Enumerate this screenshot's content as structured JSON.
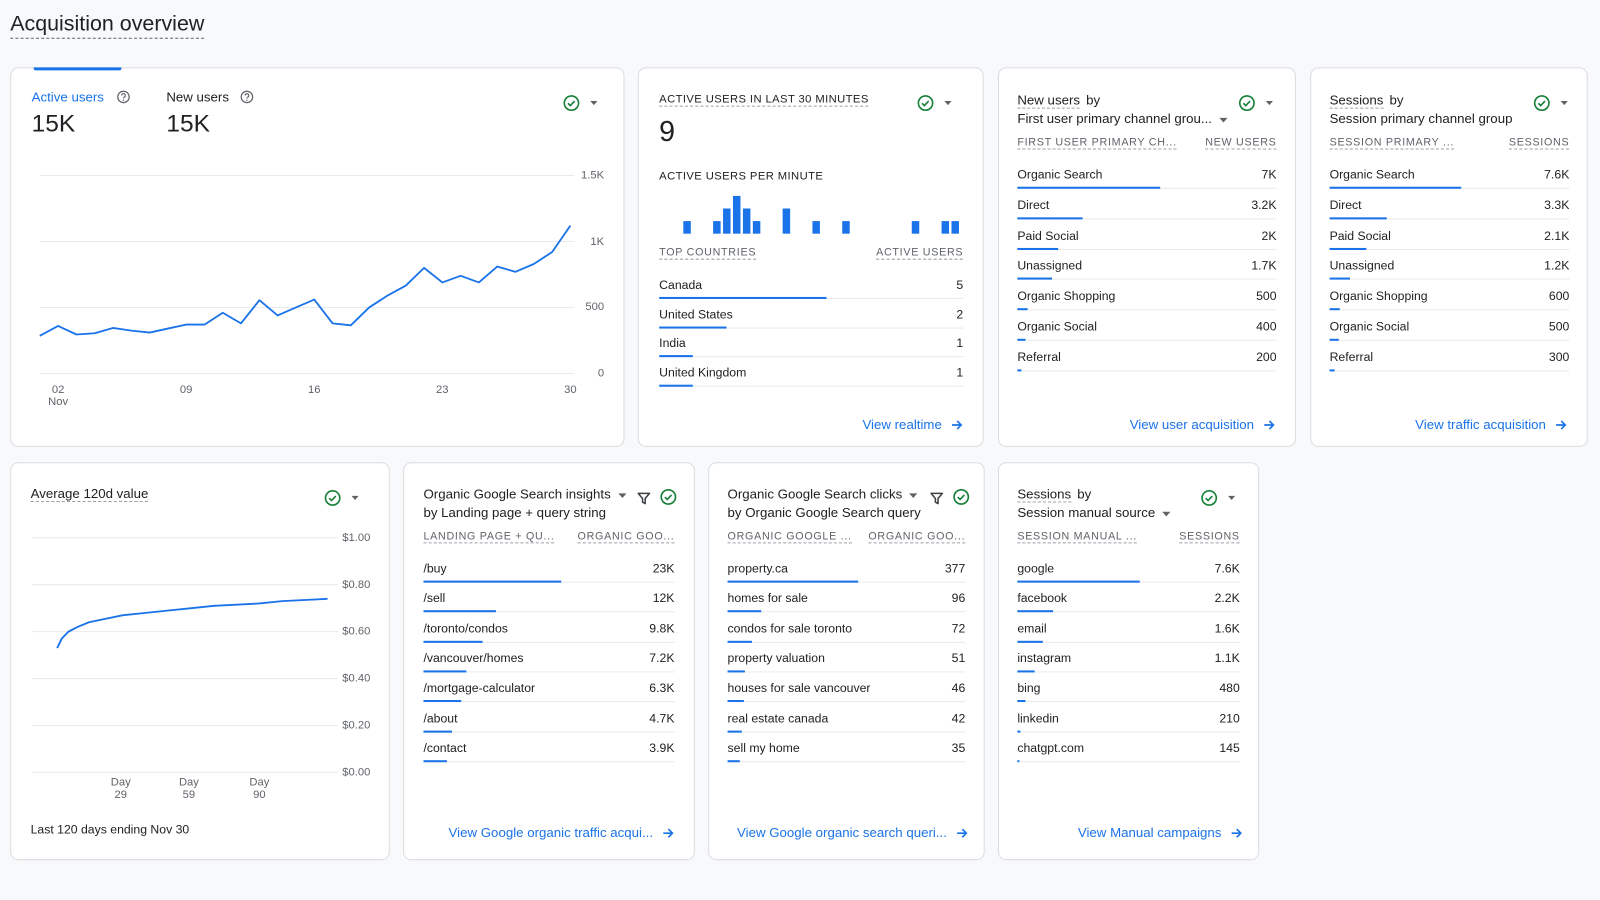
{
  "title": "Acquisition overview",
  "users_card": {
    "metrics": [
      {
        "label": "Active users",
        "value": "15K"
      },
      {
        "label": "New users",
        "value": "15K"
      }
    ],
    "chart": {
      "type": "line",
      "x": [
        1,
        2,
        3,
        4,
        5,
        6,
        7,
        8,
        9,
        10,
        11,
        12,
        13,
        14,
        15,
        16,
        17,
        18,
        19,
        20,
        21,
        22,
        23,
        24,
        25,
        26,
        27,
        28,
        29,
        30
      ],
      "values": [
        285,
        360,
        295,
        305,
        345,
        325,
        310,
        340,
        370,
        370,
        460,
        380,
        555,
        440,
        500,
        560,
        380,
        365,
        500,
        590,
        665,
        800,
        690,
        740,
        690,
        810,
        770,
        830,
        920,
        1120
      ],
      "xlim": [
        1,
        30
      ],
      "xticks": [
        {
          "value": 2,
          "label": "02 Nov"
        },
        {
          "value": 9,
          "label": "09"
        },
        16,
        23,
        30
      ],
      "ylim": [
        0,
        1500
      ],
      "yticks": [
        0,
        500,
        {
          "value": 1000,
          "label": "1K"
        },
        {
          "value": 1500,
          "label": "1.5K"
        }
      ],
      "color": "#1a73e8",
      "grid": true
    }
  },
  "realtime_card": {
    "title": "ACTIVE USERS IN LAST 30 MINUTES",
    "value": 9,
    "chart_title": "ACTIVE USERS PER MINUTE",
    "chart": {
      "type": "bar",
      "values": [
        0,
        0,
        1,
        0,
        0,
        1,
        2,
        3,
        2,
        1,
        0,
        0,
        2,
        0,
        0,
        1,
        0,
        0,
        1,
        0,
        0,
        0,
        0,
        0,
        0,
        1,
        0,
        0,
        1,
        1
      ],
      "color": "#1a73e8"
    },
    "table": {
      "col_headers": [
        "TOP COUNTRIES",
        "ACTIVE USERS"
      ],
      "rows": [
        {
          "label": "Canada",
          "value": 5
        },
        {
          "label": "United States",
          "value": 2
        },
        {
          "label": "India",
          "value": 1
        },
        {
          "label": "United Kingdom",
          "value": 1
        }
      ]
    },
    "link": "View realtime"
  },
  "new_users_card": {
    "title": "New users",
    "title_suffix": "by",
    "subtitle": "First user primary channel grou...",
    "table": {
      "col_headers": [
        "FIRST USER PRIMARY CH...",
        "NEW USERS"
      ],
      "rows": [
        {
          "label": "Organic Search",
          "value": 7000,
          "value_label": "7K"
        },
        {
          "label": "Direct",
          "value": 3200,
          "value_label": "3.2K"
        },
        {
          "label": "Paid Social",
          "value": 2000,
          "value_label": "2K"
        },
        {
          "label": "Unassigned",
          "value": 1700,
          "value_label": "1.7K"
        },
        {
          "label": "Organic Shopping",
          "value": 500
        },
        {
          "label": "Organic Social",
          "value": 400
        },
        {
          "label": "Referral",
          "value": 200
        }
      ]
    },
    "link": "View user acquisition"
  },
  "sessions_card": {
    "title": "Sessions",
    "title_suffix": "by",
    "subtitle": "Session primary channel group",
    "table": {
      "col_headers": [
        "SESSION PRIMARY ...",
        "SESSIONS"
      ],
      "rows": [
        {
          "label": "Organic Search",
          "value": 7600,
          "value_label": "7.6K"
        },
        {
          "label": "Direct",
          "value": 3300,
          "value_label": "3.3K"
        },
        {
          "label": "Paid Social",
          "value": 2100,
          "value_label": "2.1K"
        },
        {
          "label": "Unassigned",
          "value": 1200,
          "value_label": "1.2K"
        },
        {
          "label": "Organic Shopping",
          "value": 600
        },
        {
          "label": "Organic Social",
          "value": 500
        },
        {
          "label": "Referral",
          "value": 300
        }
      ]
    },
    "link": "View traffic acquisition"
  },
  "value_card": {
    "title": "Average 120d value",
    "chart": {
      "type": "line",
      "x": [
        1,
        3,
        6,
        10,
        15,
        20,
        30,
        40,
        50,
        60,
        70,
        80,
        90,
        100,
        110,
        120
      ],
      "values": [
        0.53,
        0.57,
        0.6,
        0.62,
        0.64,
        0.65,
        0.67,
        0.68,
        0.69,
        0.7,
        0.71,
        0.715,
        0.72,
        0.73,
        0.735,
        0.74
      ],
      "xlim": [
        1,
        120
      ],
      "xticks": [
        {
          "value": 29,
          "label": "Day 29"
        },
        {
          "value": 59,
          "label": "Day 59"
        },
        {
          "value": 90,
          "label": "Day 90"
        }
      ],
      "ylim": [
        0,
        1
      ],
      "yticks": [
        {
          "value": 0,
          "label": "$0.00"
        },
        {
          "value": 0.2,
          "label": "$0.20"
        },
        {
          "value": 0.4,
          "label": "$0.40"
        },
        {
          "value": 0.6,
          "label": "$0.60"
        },
        {
          "value": 0.8,
          "label": "$0.80"
        },
        {
          "value": 1,
          "label": "$1.00"
        }
      ],
      "color": "#1a73e8",
      "grid": true
    },
    "footer": "Last 120 days ending Nov 30"
  },
  "landing_card": {
    "title": "Organic Google Search insights",
    "subtitle": "by Landing page + query string",
    "table": {
      "col_headers": [
        "LANDING PAGE + QU...",
        "ORGANIC GOO..."
      ],
      "rows": [
        {
          "label": "/buy",
          "value": 23000,
          "value_label": "23K"
        },
        {
          "label": "/sell",
          "value": 12000,
          "value_label": "12K"
        },
        {
          "label": "/toronto/condos",
          "value": 9800,
          "value_label": "9.8K"
        },
        {
          "label": "/vancouver/homes",
          "value": 7200,
          "value_label": "7.2K"
        },
        {
          "label": "/mortgage-calculator",
          "value": 6300,
          "value_label": "6.3K"
        },
        {
          "label": "/about",
          "value": 4700,
          "value_label": "4.7K"
        },
        {
          "label": "/contact",
          "value": 3900,
          "value_label": "3.9K"
        }
      ]
    },
    "link": "View Google organic traffic acqui..."
  },
  "query_card": {
    "title": "Organic Google Search clicks",
    "subtitle": "by Organic Google Search query",
    "table": {
      "col_headers": [
        "ORGANIC GOOGLE ...",
        "ORGANIC GOO..."
      ],
      "rows": [
        {
          "label": "property.ca",
          "value": 377
        },
        {
          "label": "homes for sale",
          "value": 96
        },
        {
          "label": "condos for sale toronto",
          "value": 72
        },
        {
          "label": "property valuation",
          "value": 51
        },
        {
          "label": "houses for sale vancouver",
          "value": 46
        },
        {
          "label": "real estate canada",
          "value": 42
        },
        {
          "label": "sell my home",
          "value": 35
        }
      ]
    },
    "link": "View Google organic search queri..."
  },
  "manual_card": {
    "title": "Sessions",
    "title_suffix": "by",
    "subtitle": "Session manual source",
    "table": {
      "col_headers": [
        "SESSION MANUAL ...",
        "SESSIONS"
      ],
      "rows": [
        {
          "label": "google",
          "value": 7600,
          "value_label": "7.6K"
        },
        {
          "label": "facebook",
          "value": 2200,
          "value_label": "2.2K"
        },
        {
          "label": "email",
          "value": 1600,
          "value_label": "1.6K"
        },
        {
          "label": "instagram",
          "value": 1100,
          "value_label": "1.1K"
        },
        {
          "label": "bing",
          "value": 480
        },
        {
          "label": "linkedin",
          "value": 210
        },
        {
          "label": "chatgpt.com",
          "value": 145
        }
      ]
    },
    "link": "View Manual campaigns"
  }
}
